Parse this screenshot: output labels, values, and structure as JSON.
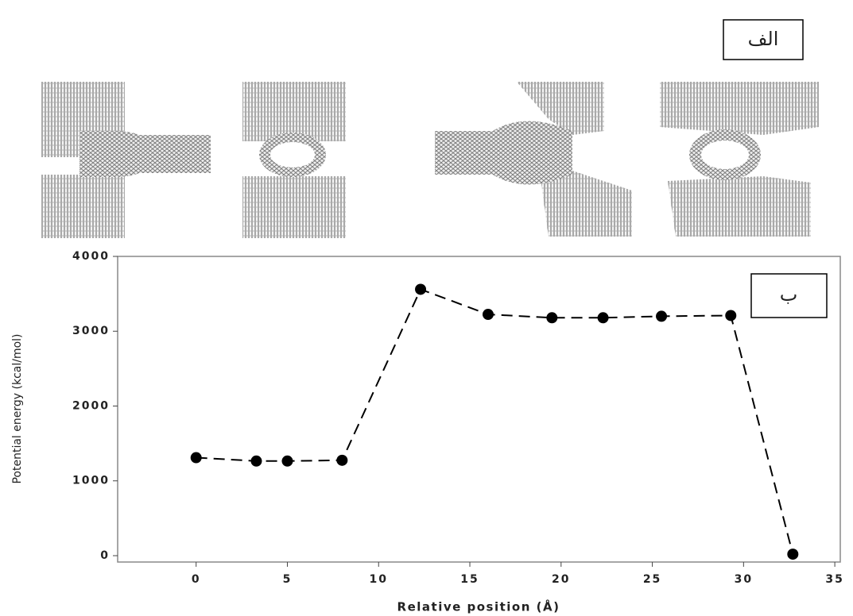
{
  "chart_data": {
    "type": "line",
    "x_label": "Relative position (Å)",
    "y_label": "Potential energy (kcal/mol)",
    "annotations": [
      "الف",
      "ب"
    ],
    "x": [
      0,
      3.3,
      5,
      8,
      12.3,
      16,
      19.5,
      22.3,
      25.5,
      29.3,
      32.7
    ],
    "series": [
      {
        "color": "#000000",
        "values": [
          1310,
          1265,
          1265,
          1275,
          3560,
          3225,
          3180,
          3180,
          3200,
          3210,
          20
        ]
      }
    ],
    "xlim": [
      -4.3,
      35.3
    ],
    "xticks": [
      0,
      5,
      10,
      15,
      20,
      25,
      30,
      35
    ],
    "ylim": [
      -85,
      4000
    ],
    "yticks": [
      0,
      1000,
      2000,
      3000,
      4000
    ],
    "grid": false,
    "dashed": true
  }
}
